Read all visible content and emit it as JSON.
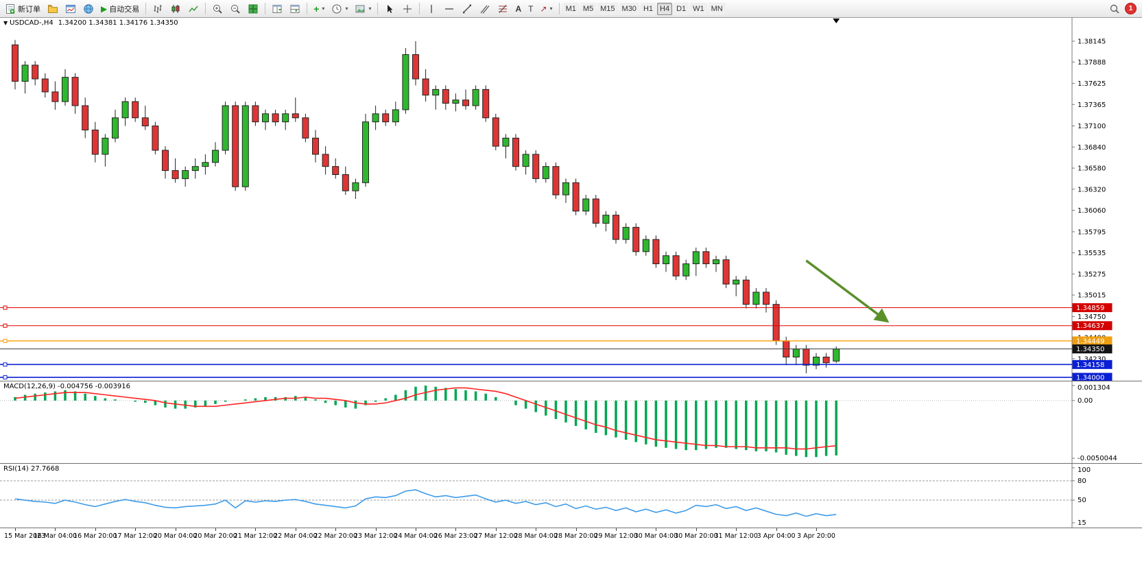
{
  "toolbar": {
    "new_order_label": "新订单",
    "autotrading_label": "自动交易",
    "text_tool_label": "A",
    "label_tool_label": "T",
    "arrows_tool_glyph": "↗",
    "timeframes": [
      "M1",
      "M5",
      "M15",
      "M30",
      "H1",
      "H4",
      "D1",
      "W1",
      "MN"
    ],
    "active_timeframe": "H4",
    "notification_count": "1"
  },
  "titlebar": {
    "symbol_period": "USDCAD-,H4",
    "quote_ohlc": "1.34200 1.34381 1.34176 1.34350"
  },
  "chart_data": {
    "type": "candlestick",
    "symbol": "USDCAD-",
    "period": "H4",
    "current_bar": {
      "open": 1.342,
      "high": 1.34381,
      "low": 1.34176,
      "close": 1.3435
    },
    "visible_range": {
      "price_high": 1.38433,
      "price_low": 1.33958
    },
    "colors": {
      "bull": "#2eb82e",
      "bear": "#e03535",
      "outline": "#222222",
      "macd_histogram": "#00a651",
      "macd_signal": "#ff2222",
      "rsi_line": "#3d9be9",
      "arrow": "#5a8f29"
    },
    "price_axis_labels": [
      "1.38145",
      "1.37888",
      "1.37625",
      "1.37365",
      "1.37100",
      "1.36840",
      "1.36580",
      "1.36320",
      "1.36060",
      "1.35795",
      "1.35535",
      "1.35275",
      "1.35015",
      "1.34750",
      "1.34490",
      "1.34230"
    ],
    "time_axis": {
      "labels": [
        "15 Mar 2023",
        "16 Mar 04:00",
        "16 Mar 20:00",
        "17 Mar 12:00",
        "20 Mar 04:00",
        "20 Mar 20:00",
        "21 Mar 12:00",
        "22 Mar 04:00",
        "22 Mar 20:00",
        "23 Mar 12:00",
        "24 Mar 04:00",
        "26 Mar 23:00",
        "27 Mar 12:00",
        "28 Mar 04:00",
        "28 Mar 20:00",
        "29 Mar 12:00",
        "30 Mar 04:00",
        "30 Mar 20:00",
        "31 Mar 12:00",
        "3 Apr 04:00",
        "3 Apr 20:00"
      ],
      "bars": [
        0,
        4,
        8,
        12,
        16,
        20,
        24,
        28,
        32,
        36,
        40,
        44,
        48,
        52,
        56,
        60,
        64,
        68,
        72,
        76,
        80
      ]
    },
    "candles": [
      [
        1.381,
        1.3816,
        1.3755,
        1.3765
      ],
      [
        1.3765,
        1.379,
        1.375,
        1.3785
      ],
      [
        1.3785,
        1.379,
        1.376,
        1.3768
      ],
      [
        1.3768,
        1.3775,
        1.3745,
        1.3752
      ],
      [
        1.3752,
        1.3765,
        1.373,
        1.374
      ],
      [
        1.374,
        1.378,
        1.3735,
        1.377
      ],
      [
        1.377,
        1.3775,
        1.3725,
        1.3735
      ],
      [
        1.3735,
        1.3745,
        1.3695,
        1.3705
      ],
      [
        1.3705,
        1.3715,
        1.3665,
        1.3675
      ],
      [
        1.3675,
        1.37,
        1.366,
        1.3695
      ],
      [
        1.3695,
        1.373,
        1.369,
        1.372
      ],
      [
        1.372,
        1.3745,
        1.371,
        1.374
      ],
      [
        1.374,
        1.3745,
        1.3715,
        1.372
      ],
      [
        1.372,
        1.3735,
        1.3705,
        1.371
      ],
      [
        1.371,
        1.3715,
        1.3675,
        1.368
      ],
      [
        1.368,
        1.3685,
        1.3645,
        1.3655
      ],
      [
        1.3655,
        1.367,
        1.364,
        1.3645
      ],
      [
        1.3645,
        1.366,
        1.3635,
        1.3655
      ],
      [
        1.3655,
        1.367,
        1.3645,
        1.366
      ],
      [
        1.366,
        1.3675,
        1.365,
        1.3665
      ],
      [
        1.3665,
        1.369,
        1.366,
        1.368
      ],
      [
        1.368,
        1.374,
        1.3675,
        1.3735
      ],
      [
        1.3735,
        1.374,
        1.363,
        1.3635
      ],
      [
        1.3635,
        1.374,
        1.363,
        1.3735
      ],
      [
        1.3735,
        1.374,
        1.371,
        1.3715
      ],
      [
        1.3715,
        1.373,
        1.3705,
        1.3725
      ],
      [
        1.3725,
        1.373,
        1.371,
        1.3715
      ],
      [
        1.3715,
        1.373,
        1.3705,
        1.3725
      ],
      [
        1.3725,
        1.3745,
        1.3715,
        1.372
      ],
      [
        1.372,
        1.3725,
        1.369,
        1.3695
      ],
      [
        1.3695,
        1.3705,
        1.3665,
        1.3675
      ],
      [
        1.3675,
        1.3685,
        1.365,
        1.366
      ],
      [
        1.366,
        1.367,
        1.3645,
        1.365
      ],
      [
        1.365,
        1.366,
        1.3625,
        1.363
      ],
      [
        1.363,
        1.3645,
        1.362,
        1.364
      ],
      [
        1.364,
        1.3725,
        1.3635,
        1.3715
      ],
      [
        1.3715,
        1.3735,
        1.3705,
        1.3725
      ],
      [
        1.3725,
        1.373,
        1.371,
        1.3715
      ],
      [
        1.3715,
        1.374,
        1.371,
        1.373
      ],
      [
        1.373,
        1.3806,
        1.3725,
        1.3798
      ],
      [
        1.3798,
        1.38145,
        1.376,
        1.3768
      ],
      [
        1.3768,
        1.378,
        1.374,
        1.3748
      ],
      [
        1.3748,
        1.376,
        1.373,
        1.3755
      ],
      [
        1.3755,
        1.376,
        1.373,
        1.3738
      ],
      [
        1.3738,
        1.375,
        1.3728,
        1.3742
      ],
      [
        1.3742,
        1.3755,
        1.373,
        1.3735
      ],
      [
        1.3735,
        1.376,
        1.373,
        1.3755
      ],
      [
        1.3755,
        1.376,
        1.3715,
        1.372
      ],
      [
        1.372,
        1.3725,
        1.368,
        1.3685
      ],
      [
        1.3685,
        1.37,
        1.367,
        1.3695
      ],
      [
        1.3695,
        1.37,
        1.3655,
        1.366
      ],
      [
        1.366,
        1.368,
        1.365,
        1.3675
      ],
      [
        1.3675,
        1.368,
        1.364,
        1.3645
      ],
      [
        1.3645,
        1.3665,
        1.364,
        1.366
      ],
      [
        1.366,
        1.3665,
        1.362,
        1.3625
      ],
      [
        1.3625,
        1.3645,
        1.3615,
        1.364
      ],
      [
        1.364,
        1.3645,
        1.36,
        1.3605
      ],
      [
        1.3605,
        1.3625,
        1.36,
        1.362
      ],
      [
        1.362,
        1.3625,
        1.3585,
        1.359
      ],
      [
        1.359,
        1.3605,
        1.358,
        1.36
      ],
      [
        1.36,
        1.3605,
        1.3565,
        1.357
      ],
      [
        1.357,
        1.359,
        1.3565,
        1.3585
      ],
      [
        1.3585,
        1.359,
        1.355,
        1.3555
      ],
      [
        1.3555,
        1.3575,
        1.355,
        1.357
      ],
      [
        1.357,
        1.3575,
        1.3535,
        1.354
      ],
      [
        1.354,
        1.3555,
        1.353,
        1.355
      ],
      [
        1.355,
        1.3555,
        1.352,
        1.3525
      ],
      [
        1.3525,
        1.3545,
        1.352,
        1.354
      ],
      [
        1.354,
        1.356,
        1.3525,
        1.3555
      ],
      [
        1.3555,
        1.356,
        1.3535,
        1.354
      ],
      [
        1.354,
        1.355,
        1.353,
        1.3545
      ],
      [
        1.3545,
        1.355,
        1.351,
        1.3515
      ],
      [
        1.3515,
        1.3525,
        1.35,
        1.352
      ],
      [
        1.352,
        1.3525,
        1.3485,
        1.349
      ],
      [
        1.349,
        1.351,
        1.3485,
        1.3505
      ],
      [
        1.3505,
        1.351,
        1.348,
        1.349
      ],
      [
        1.349,
        1.3495,
        1.344,
        1.3445
      ],
      [
        1.3445,
        1.345,
        1.3415,
        1.3425
      ],
      [
        1.3425,
        1.344,
        1.3415,
        1.3435
      ],
      [
        1.3435,
        1.344,
        1.3405,
        1.3415
      ],
      [
        1.3415,
        1.343,
        1.341,
        1.3425
      ],
      [
        1.3425,
        1.343,
        1.3412,
        1.3418
      ],
      [
        1.342,
        1.34381,
        1.34176,
        1.3435
      ]
    ],
    "hlines": [
      {
        "price": 1.34859,
        "label": "1.34859",
        "color": "#e00000",
        "label_bg": "#d40000",
        "width": 1,
        "handles": true
      },
      {
        "price": 1.34637,
        "label": "1.34637",
        "color": "#e00000",
        "label_bg": "#d40000",
        "width": 1,
        "handles": true
      },
      {
        "price": 1.34449,
        "label": "1.34449",
        "color": "#ff9c00",
        "label_bg": "#ef9f13",
        "width": 1.4,
        "handles": true
      },
      {
        "price": 1.3435,
        "label": "1.34350",
        "color": "#3a3a3a",
        "label_bg": "#141414",
        "width": 1,
        "handles": false
      },
      {
        "price": 1.34158,
        "label": "1.34158",
        "color": "#0a1fd4",
        "label_bg": "#0a1fd4",
        "width": 1.6,
        "handles": true
      },
      {
        "price": 1.34,
        "label": "1.34000",
        "color": "#0a1fd4",
        "label_bg": "#0a1fd4",
        "width": 1.6,
        "handles": true
      }
    ],
    "trend_arrow": {
      "from_bar": 79,
      "from_price": 1.3544,
      "to_bar": 87,
      "to_price": 1.347,
      "color": "#5a8f29"
    },
    "indicators": {
      "macd": {
        "display": "MACD(12,26,9) -0.004756 -0.003916",
        "name": "MACD(12,26,9)",
        "value_main": -0.004756,
        "value_signal": -0.003916,
        "range": {
          "max": 0.001304,
          "min": -0.0050044
        },
        "axis_labels": [
          "0.001304",
          "0.00",
          "-0.0050044"
        ],
        "axis_values": [
          0.001304,
          0,
          -0.0050044
        ],
        "histogram": [
          0.0003,
          0.0005,
          0.0006,
          0.0007,
          0.0008,
          0.0009,
          0.0008,
          0.0006,
          0.0004,
          0.0002,
          0.0001,
          0,
          -0.0001,
          -0.0002,
          -0.0004,
          -0.0006,
          -0.0007,
          -0.0007,
          -0.0006,
          -0.0005,
          -0.0003,
          -0.0001,
          0,
          0.0001,
          0.0002,
          0.0003,
          0.0003,
          0.0003,
          0.0004,
          0.0003,
          0.0001,
          -0.0002,
          -0.0004,
          -0.0006,
          -0.0007,
          -0.0004,
          -0.0001,
          0.0002,
          0.0005,
          0.0009,
          0.0012,
          0.0013,
          0.0012,
          0.0011,
          0.001,
          0.0009,
          0.0008,
          0.0006,
          0.0003,
          0,
          -0.0004,
          -0.0007,
          -0.001,
          -0.0013,
          -0.0016,
          -0.0019,
          -0.0022,
          -0.0025,
          -0.0028,
          -0.003,
          -0.0032,
          -0.0034,
          -0.0036,
          -0.0038,
          -0.004,
          -0.0041,
          -0.0042,
          -0.0043,
          -0.0043,
          -0.0042,
          -0.0041,
          -0.0041,
          -0.0042,
          -0.0043,
          -0.0044,
          -0.0044,
          -0.0045,
          -0.0047,
          -0.0048,
          -0.0049,
          -0.0049,
          -0.0048,
          -0.004756
        ],
        "signal": [
          0.0002,
          0.0003,
          0.0004,
          0.0005,
          0.0006,
          0.0007,
          0.0007,
          0.0007,
          0.0006,
          0.0005,
          0.0004,
          0.0003,
          0.0002,
          0.0001,
          0,
          -0.0002,
          -0.0003,
          -0.0004,
          -0.0005,
          -0.0005,
          -0.0005,
          -0.0004,
          -0.0003,
          -0.0002,
          -0.0001,
          0,
          0.0001,
          0.0002,
          0.0002,
          0.0003,
          0.0002,
          0.0002,
          0.0001,
          0,
          -0.0002,
          -0.0003,
          -0.0003,
          -0.0002,
          0,
          0.0002,
          0.0005,
          0.0007,
          0.0009,
          0.001,
          0.0011,
          0.0011,
          0.001,
          0.0009,
          0.0008,
          0.0006,
          0.0003,
          0,
          -0.0003,
          -0.0006,
          -0.0009,
          -0.0012,
          -0.0015,
          -0.0018,
          -0.0021,
          -0.0023,
          -0.0026,
          -0.0028,
          -0.003,
          -0.0032,
          -0.0034,
          -0.0035,
          -0.0036,
          -0.0037,
          -0.0038,
          -0.0039,
          -0.0039,
          -0.004,
          -0.004,
          -0.004,
          -0.0041,
          -0.0041,
          -0.0041,
          -0.0041,
          -0.0042,
          -0.0042,
          -0.0041,
          -0.004,
          -0.003916
        ]
      },
      "rsi": {
        "display": "RSI(14) 27.7668",
        "name": "RSI(14)",
        "value": 27.7668,
        "range": {
          "max": 100,
          "min": 15
        },
        "axis_labels": [
          "100",
          "80",
          "50",
          "15"
        ],
        "axis_values": [
          100,
          80,
          50,
          15
        ],
        "levels": [
          80,
          50
        ],
        "values": [
          52,
          50,
          48,
          47,
          45,
          50,
          47,
          43,
          40,
          44,
          48,
          51,
          48,
          46,
          42,
          39,
          38,
          40,
          41,
          42,
          44,
          50,
          38,
          49,
          47,
          49,
          48,
          50,
          51,
          48,
          44,
          42,
          40,
          38,
          41,
          52,
          55,
          54,
          57,
          64,
          66,
          60,
          55,
          57,
          54,
          56,
          58,
          52,
          47,
          50,
          45,
          48,
          43,
          46,
          40,
          44,
          37,
          41,
          36,
          39,
          34,
          38,
          32,
          36,
          31,
          35,
          30,
          34,
          42,
          40,
          43,
          37,
          40,
          34,
          38,
          33,
          28,
          26,
          30,
          25,
          29,
          26,
          27.8
        ]
      }
    }
  }
}
